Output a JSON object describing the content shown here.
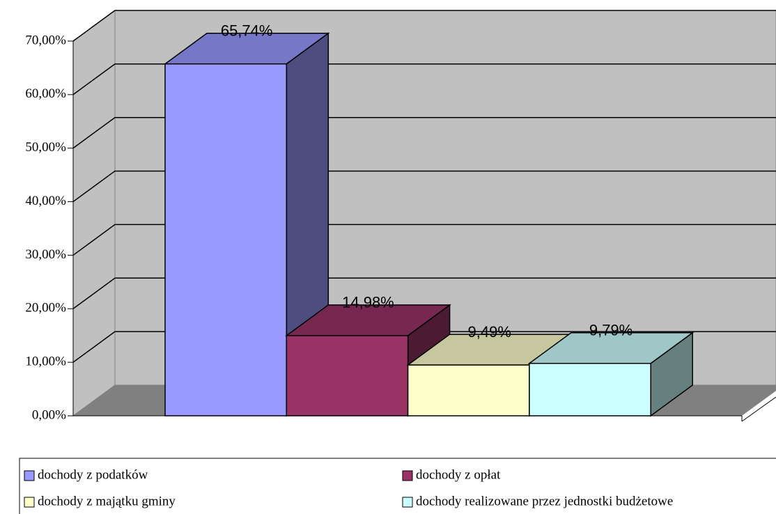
{
  "chart_data": {
    "type": "bar3d",
    "series": [
      {
        "name": "dochody z podatków",
        "color": "#9999ff",
        "values": [
          65.74
        ],
        "value_labels": [
          "65,74%"
        ]
      },
      {
        "name": "dochody z opłat",
        "color": "#993366",
        "values": [
          14.98
        ],
        "value_labels": [
          "14,98%"
        ]
      },
      {
        "name": "dochody z majątku gminy",
        "color": "#ffffcc",
        "values": [
          9.49
        ],
        "value_labels": [
          "9,49%"
        ]
      },
      {
        "name": "dochody realizowane przez jednostki budżetowe",
        "color": "#ccffff",
        "values": [
          9.79
        ],
        "value_labels": [
          "9,79%"
        ]
      }
    ],
    "ylim": [
      0,
      70
    ],
    "yticks": [
      {
        "value": 0,
        "label": "0,00%"
      },
      {
        "value": 10,
        "label": "10,00%"
      },
      {
        "value": 20,
        "label": "20,00%"
      },
      {
        "value": 30,
        "label": "30,00%"
      },
      {
        "value": 40,
        "label": "40,00%"
      },
      {
        "value": 50,
        "label": "50,00%"
      },
      {
        "value": 60,
        "label": "60,00%"
      },
      {
        "value": 70,
        "label": "70,00%"
      }
    ],
    "grid": true,
    "legend": "bottom"
  }
}
